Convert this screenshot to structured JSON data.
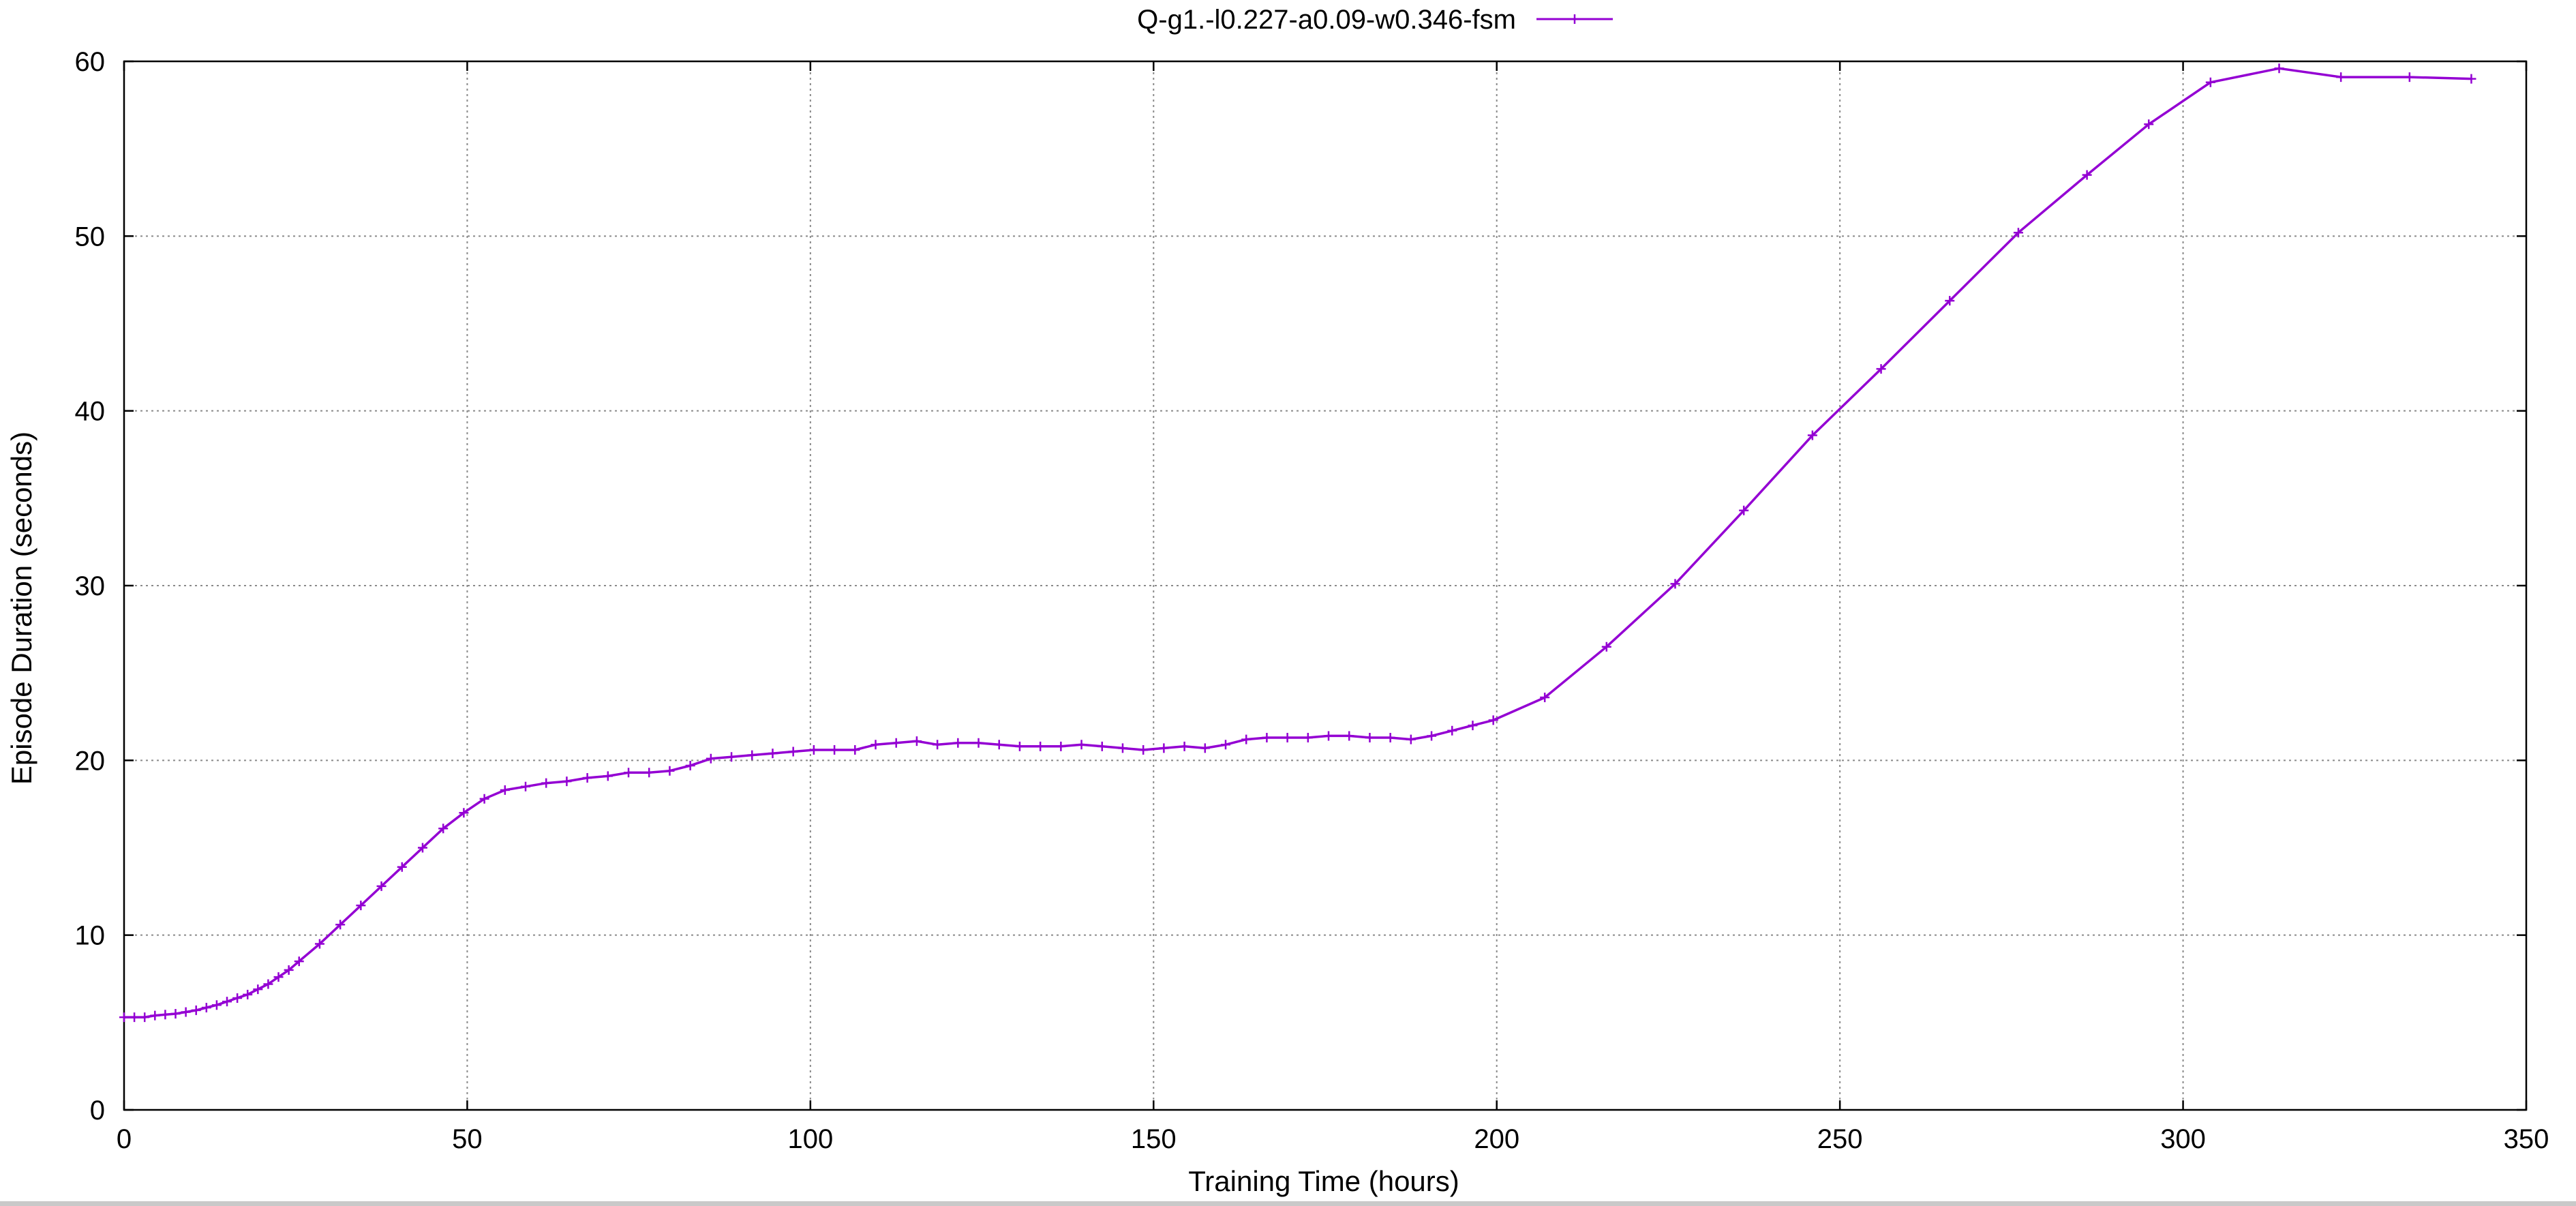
{
  "colors": {
    "series": "#9400d3",
    "grid": "#8a8a8a",
    "frame": "#000000",
    "background": "#ffffff"
  },
  "chart_data": {
    "type": "line",
    "title": "",
    "xlabel": "Training Time (hours)",
    "ylabel": "Episode Duration (seconds)",
    "xlim": [
      0,
      350
    ],
    "ylim": [
      0,
      60
    ],
    "xticks": [
      0,
      50,
      100,
      150,
      200,
      250,
      300,
      350
    ],
    "yticks": [
      0,
      10,
      20,
      30,
      40,
      50,
      60
    ],
    "grid": true,
    "legend_position": "top-center",
    "series": [
      {
        "name": "Q-g1.-l0.227-a0.09-w0.346-fsm",
        "marker": "plus",
        "x": [
          0,
          1.5,
          3,
          4.5,
          6,
          7.5,
          9,
          10.5,
          12,
          13.5,
          15,
          16.5,
          18,
          19.5,
          21,
          22.5,
          24,
          25.5,
          28.5,
          31.5,
          34.5,
          37.5,
          40.5,
          43.5,
          46.5,
          49.5,
          52.5,
          55.5,
          58.5,
          61.5,
          64.5,
          67.5,
          70.5,
          73.5,
          76.5,
          79.5,
          82.5,
          85.5,
          88.5,
          91.5,
          94.5,
          97.5,
          100.5,
          103.5,
          106.5,
          109.5,
          112.5,
          115.5,
          118.5,
          121.5,
          124.5,
          127.5,
          130.5,
          133.5,
          136.5,
          139.5,
          142.5,
          145.5,
          148.5,
          151.5,
          154.5,
          157.5,
          160.5,
          163.5,
          166.5,
          169.5,
          172.5,
          175.5,
          178.5,
          181.5,
          184.5,
          187.5,
          190.5,
          193.5,
          196.5,
          199.5,
          207,
          216,
          226,
          236,
          246,
          256,
          266,
          276,
          286,
          295,
          304,
          314,
          323,
          333,
          342
        ],
        "y": [
          5.3,
          5.3,
          5.3,
          5.4,
          5.45,
          5.5,
          5.6,
          5.7,
          5.85,
          6.0,
          6.2,
          6.4,
          6.6,
          6.9,
          7.2,
          7.6,
          8.0,
          8.5,
          9.5,
          10.6,
          11.7,
          12.8,
          13.9,
          15.0,
          16.1,
          17.0,
          17.8,
          18.3,
          18.5,
          18.7,
          18.8,
          19.0,
          19.1,
          19.3,
          19.3,
          19.4,
          19.7,
          20.1,
          20.2,
          20.3,
          20.4,
          20.5,
          20.6,
          20.6,
          20.6,
          20.9,
          21.0,
          21.1,
          20.9,
          21.0,
          21.0,
          20.9,
          20.8,
          20.8,
          20.8,
          20.9,
          20.8,
          20.7,
          20.6,
          20.7,
          20.8,
          20.7,
          20.9,
          21.2,
          21.3,
          21.3,
          21.3,
          21.4,
          21.4,
          21.3,
          21.3,
          21.2,
          21.4,
          21.7,
          22.0,
          22.3,
          23.6,
          26.5,
          30.1,
          34.3,
          38.6,
          42.4,
          46.3,
          50.2,
          53.5,
          56.4,
          58.8,
          59.6,
          59.1,
          59.1,
          59.0
        ]
      }
    ]
  }
}
